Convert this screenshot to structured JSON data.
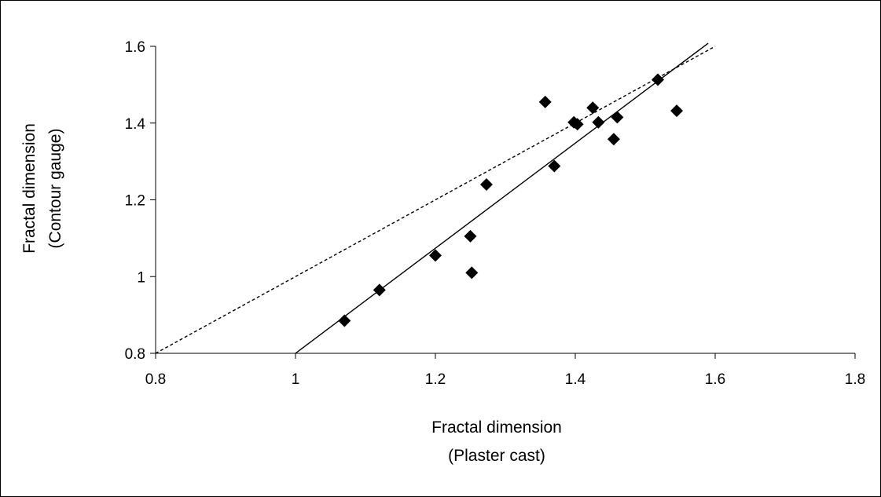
{
  "chart_data": {
    "type": "scatter",
    "title": "",
    "xlabel": [
      "Fractal dimension",
      "(Plaster cast)"
    ],
    "ylabel": [
      "Fractal dimension",
      "(Contour gauge)"
    ],
    "xlim": [
      0.8,
      1.8
    ],
    "ylim": [
      0.8,
      1.6
    ],
    "x_ticks": [
      0.8,
      1,
      1.2,
      1.4,
      1.6,
      1.8
    ],
    "x_tick_labels": [
      "0.8",
      "1",
      "1.2",
      "1.4",
      "1.6",
      "1.8"
    ],
    "y_ticks": [
      0.8,
      1,
      1.2,
      1.4,
      1.6
    ],
    "y_tick_labels": [
      "0.8",
      "1",
      "1.2",
      "1.4",
      "1.6"
    ],
    "grid": false,
    "legend": "none",
    "marker": "diamond",
    "marker_color": "#000000",
    "series": [
      {
        "points": [
          {
            "x": 1.07,
            "y": 0.885
          },
          {
            "x": 1.12,
            "y": 0.965
          },
          {
            "x": 1.2,
            "y": 1.055
          },
          {
            "x": 1.25,
            "y": 1.105
          },
          {
            "x": 1.252,
            "y": 1.01
          },
          {
            "x": 1.273,
            "y": 1.24
          },
          {
            "x": 1.357,
            "y": 1.455
          },
          {
            "x": 1.37,
            "y": 1.288
          },
          {
            "x": 1.398,
            "y": 1.402
          },
          {
            "x": 1.403,
            "y": 1.397
          },
          {
            "x": 1.425,
            "y": 1.44
          },
          {
            "x": 1.433,
            "y": 1.402
          },
          {
            "x": 1.455,
            "y": 1.358
          },
          {
            "x": 1.46,
            "y": 1.415
          },
          {
            "x": 1.518,
            "y": 1.513
          },
          {
            "x": 1.545,
            "y": 1.432
          }
        ]
      }
    ],
    "lines": [
      {
        "style": "solid",
        "color": "#000000",
        "x": [
          1.0,
          1.59
        ],
        "y": [
          0.8,
          1.608
        ]
      },
      {
        "style": "dashed",
        "color": "#000000",
        "x": [
          0.8,
          1.6
        ],
        "y": [
          0.8,
          1.6
        ]
      }
    ]
  }
}
